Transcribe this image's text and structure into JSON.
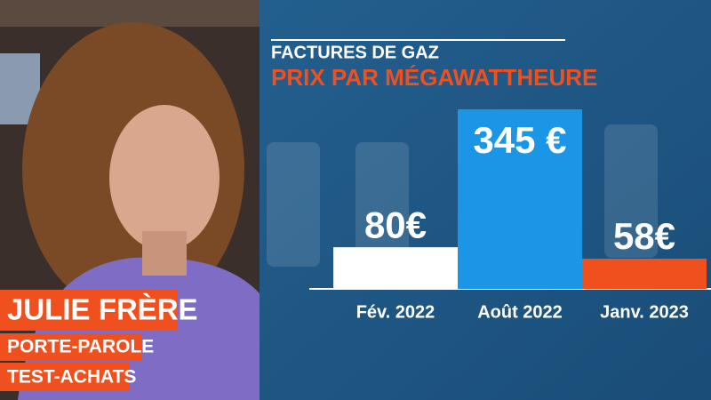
{
  "chart_data": {
    "type": "bar",
    "title": "FACTURES DE GAZ",
    "subtitle": "PRIX PAR MÉGAWATTHEURE",
    "categories": [
      "Fév. 2022",
      "Août 2022",
      "Janv. 2023"
    ],
    "values": [
      80,
      345,
      58
    ],
    "value_labels": [
      "80€",
      "345 €",
      "58€"
    ],
    "colors": [
      "#ffffff",
      "#1b95e6",
      "#f0501e"
    ]
  },
  "caption": {
    "name": "JULIE FRÈRE",
    "role": [
      "PORTE-PAROLE",
      "TEST-ACHATS"
    ]
  }
}
